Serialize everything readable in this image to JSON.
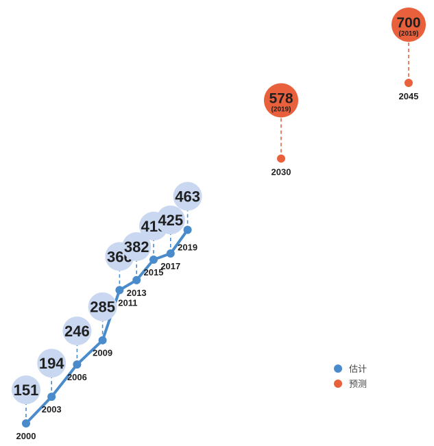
{
  "chart_data": {
    "type": "line",
    "title": "",
    "xlabel": "",
    "ylabel": "",
    "colors": {
      "estimate_line": "#4a8bcb",
      "estimate_bubble": "#c9d8f0",
      "forecast": "#e8603c",
      "text": "#1f1f1f"
    },
    "legend": {
      "position": "bottom-right",
      "entries": [
        {
          "key": "estimate",
          "label": "估计"
        },
        {
          "key": "forecast",
          "label": "预测"
        }
      ]
    },
    "series": [
      {
        "key": "estimate",
        "points": [
          {
            "year": "2000",
            "value": "151"
          },
          {
            "year": "2003",
            "value": "194"
          },
          {
            "year": "2006",
            "value": "246"
          },
          {
            "year": "2009",
            "value": "285"
          },
          {
            "year": "2011",
            "value": "366"
          },
          {
            "year": "2013",
            "value": "382"
          },
          {
            "year": "2015",
            "value": "415"
          },
          {
            "year": "2017",
            "value": "425"
          },
          {
            "year": "2019",
            "value": "463"
          }
        ]
      },
      {
        "key": "forecast",
        "points": [
          {
            "year": "2030",
            "value": "578",
            "note": "(2019)"
          },
          {
            "year": "2045",
            "value": "700",
            "note": "(2019)"
          }
        ]
      }
    ]
  }
}
